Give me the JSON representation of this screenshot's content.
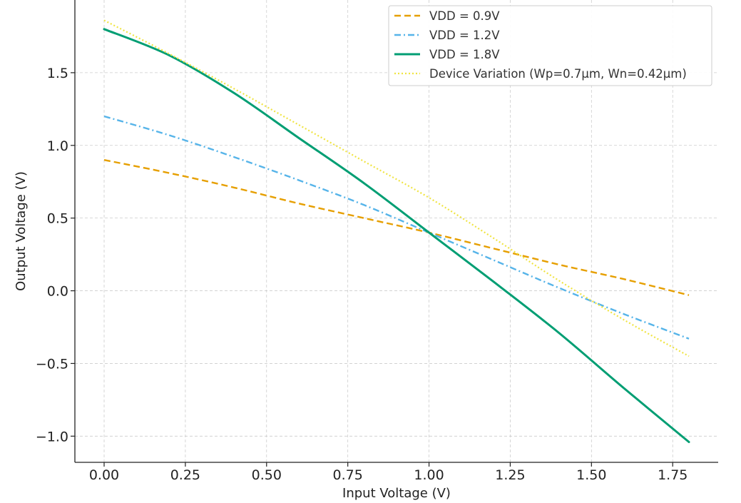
{
  "chart_data": {
    "type": "line",
    "xlabel": "Input Voltage (V)",
    "ylabel": "Output Voltage (V)",
    "xlim": [
      -0.09,
      1.89
    ],
    "ylim": [
      -1.18,
      2.0
    ],
    "xticks": [
      0.0,
      0.25,
      0.5,
      0.75,
      1.0,
      1.25,
      1.5,
      1.75
    ],
    "xtick_labels": [
      "0.00",
      "0.25",
      "0.50",
      "0.75",
      "1.00",
      "1.25",
      "1.50",
      "1.75"
    ],
    "yticks": [
      -1.0,
      -0.5,
      0.0,
      0.5,
      1.0,
      1.5
    ],
    "ytick_labels": [
      "−1.0",
      "−0.5",
      "0.0",
      "0.5",
      "1.0",
      "1.5"
    ],
    "grid": true,
    "legend_position": "top-right",
    "x": [
      0.0,
      0.2,
      0.4,
      0.6,
      0.8,
      1.0,
      1.2,
      1.4,
      1.6,
      1.8
    ],
    "series": [
      {
        "name": "VDD = 0.9V",
        "color": "#E69F00",
        "style": "dashed",
        "values": [
          0.9,
          0.81,
          0.71,
          0.6,
          0.5,
          0.4,
          0.29,
          0.18,
          0.08,
          -0.03
        ]
      },
      {
        "name": "VDD = 1.2V",
        "color": "#56B4E9",
        "style": "dashdot",
        "values": [
          1.2,
          1.07,
          0.92,
          0.76,
          0.59,
          0.4,
          0.21,
          0.02,
          -0.16,
          -0.33
        ]
      },
      {
        "name": "VDD = 1.8V",
        "color": "#009E73",
        "style": "solid",
        "values": [
          1.8,
          1.62,
          1.36,
          1.05,
          0.74,
          0.4,
          0.06,
          -0.29,
          -0.67,
          -1.04
        ]
      },
      {
        "name": "Device Variation (Wp=0.7μm, Wn=0.42μm)",
        "color": "#F0E442",
        "style": "dotted",
        "values": [
          1.86,
          1.63,
          1.39,
          1.14,
          0.89,
          0.64,
          0.36,
          0.07,
          -0.2,
          -0.45
        ]
      }
    ]
  }
}
